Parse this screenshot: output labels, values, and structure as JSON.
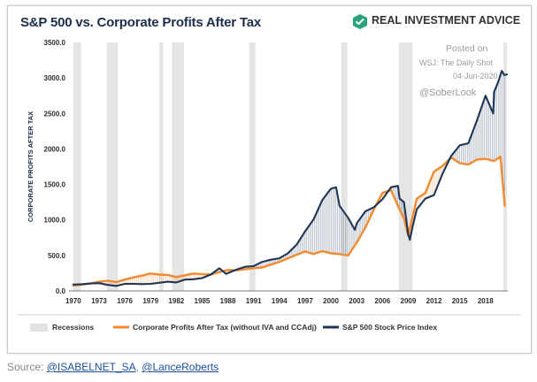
{
  "chart_data": {
    "type": "line",
    "title": "S&P 500 vs. Corporate Profits After Tax",
    "ylabel": "CORPORATE PROFITS AFTER TAX",
    "xlabel": "",
    "ylim": [
      0,
      3500
    ],
    "xlim": [
      1969.5,
      2020.6
    ],
    "yticks": [
      "0.0",
      "500.0",
      "1000.0",
      "1500.0",
      "2000.0",
      "2500.0",
      "3000.0",
      "3500.0"
    ],
    "xticks": [
      "1970",
      "1973",
      "1976",
      "1979",
      "1982",
      "1985",
      "1988",
      "1991",
      "1994",
      "1997",
      "2000",
      "2003",
      "2006",
      "2009",
      "2012",
      "2015",
      "2018"
    ],
    "grid": false,
    "legend_position": "bottom",
    "recessions": [
      [
        1970,
        1970.9
      ],
      [
        1973.9,
        1975.2
      ],
      [
        1980.0,
        1980.5
      ],
      [
        1981.5,
        1982.9
      ],
      [
        1990.5,
        1991.2
      ],
      [
        2001.2,
        2001.9
      ],
      [
        2007.9,
        2009.5
      ],
      [
        2020.1,
        2020.5
      ]
    ],
    "series": [
      {
        "name": "Corporate Profits After Tax (without IVA and CCAdj)",
        "color": "#f28a30",
        "x": [
          1970,
          1971,
          1972,
          1973,
          1974,
          1975,
          1976,
          1977,
          1978,
          1979,
          1980,
          1981,
          1982,
          1983,
          1984,
          1985,
          1986,
          1987,
          1988,
          1989,
          1990,
          1991,
          1992,
          1993,
          1994,
          1995,
          1996,
          1997,
          1998,
          1999,
          2000,
          2001,
          2002,
          2003,
          2004,
          2005,
          2006,
          2007,
          2008,
          2008.5,
          2009,
          2009.5,
          2010,
          2011,
          2012,
          2013,
          2014,
          2015,
          2016,
          2017,
          2018,
          2019,
          2019.75,
          2020.25
        ],
        "values": [
          75,
          90,
          105,
          130,
          145,
          125,
          160,
          190,
          215,
          245,
          230,
          225,
          195,
          220,
          245,
          235,
          230,
          265,
          295,
          290,
          305,
          320,
          330,
          370,
          410,
          460,
          510,
          555,
          520,
          560,
          530,
          520,
          500,
          680,
          890,
          1150,
          1380,
          1420,
          1150,
          1020,
          780,
          1040,
          1300,
          1380,
          1680,
          1760,
          1880,
          1800,
          1780,
          1850,
          1860,
          1830,
          1890,
          1200
        ]
      },
      {
        "name": "S&P 500 Stock Price Index",
        "color": "#1f3656",
        "x": [
          1970,
          1971,
          1972,
          1973,
          1974,
          1975,
          1976,
          1977,
          1978,
          1979,
          1980,
          1981,
          1982,
          1983,
          1984,
          1985,
          1986,
          1987,
          1987.8,
          1988,
          1989,
          1990,
          1991,
          1992,
          1993,
          1994,
          1995,
          1996,
          1997,
          1998,
          1999,
          2000,
          2000.6,
          2001,
          2002,
          2002.8,
          2003,
          2004,
          2005,
          2006,
          2007,
          2007.8,
          2008,
          2008.5,
          2009,
          2009.2,
          2009.5,
          2010,
          2011,
          2012,
          2013,
          2014,
          2015,
          2016,
          2017,
          2018,
          2018.9,
          2019,
          2019.5,
          2019.9,
          2020.2,
          2020.5
        ],
        "values": [
          90,
          95,
          105,
          110,
          85,
          70,
          100,
          100,
          96,
          100,
          115,
          130,
          120,
          160,
          165,
          180,
          230,
          320,
          240,
          250,
          300,
          340,
          350,
          410,
          440,
          460,
          530,
          650,
          840,
          1010,
          1280,
          1440,
          1460,
          1200,
          1030,
          860,
          950,
          1120,
          1180,
          1290,
          1460,
          1480,
          1300,
          1250,
          800,
          720,
          900,
          1150,
          1300,
          1350,
          1650,
          1900,
          2050,
          2080,
          2400,
          2750,
          2500,
          2800,
          2950,
          3100,
          3040,
          3050
        ]
      }
    ],
    "legend": [
      {
        "label": "Recessions",
        "kind": "band",
        "color": "#e2e2e2"
      },
      {
        "label": "Corporate Profits After Tax (without IVA and CCAdj)",
        "kind": "line",
        "color": "#f28a30"
      },
      {
        "label": "S&P 500 Stock Price Index",
        "kind": "line",
        "color": "#1f3656"
      }
    ],
    "annotations": [
      {
        "text": "Posted on"
      },
      {
        "text": "WSJ: The Daily Shot"
      },
      {
        "text": "04-Jun-2020"
      },
      {
        "text": "@SoberLook"
      }
    ]
  },
  "brand": {
    "name": "REAL INVESTMENT ADVICE",
    "logo_color": "#2aa57a"
  },
  "source": {
    "prefix": "Source: ",
    "link1": "@ISABELNET_SA",
    "separator": ", ",
    "link2": "@LanceRoberts"
  }
}
